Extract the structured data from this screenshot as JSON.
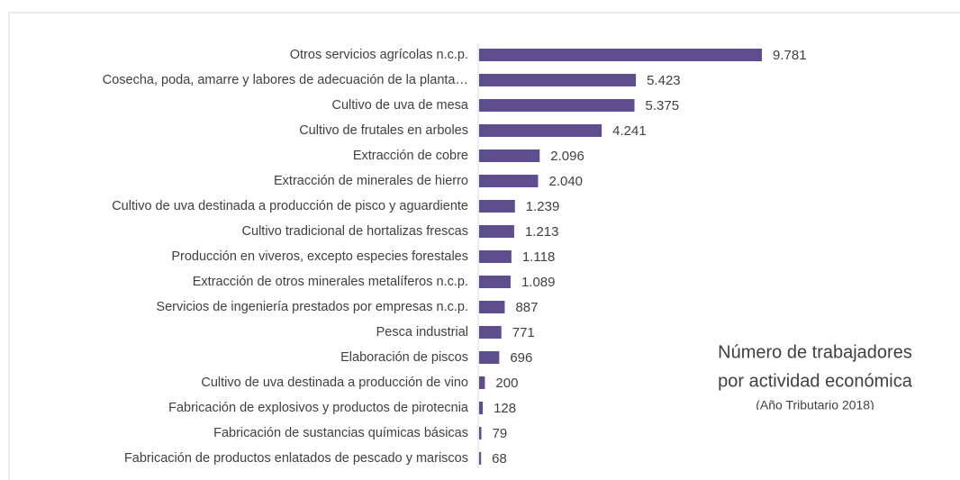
{
  "chart_data": {
    "type": "bar",
    "orientation": "horizontal",
    "title": "Número de trabajadores",
    "title_line2": "por actividad económica",
    "subtitle": "(Año Tributario 2018)",
    "color": "#5f4e8e",
    "categories": [
      "Otros servicios agrícolas n.c.p.",
      "Cosecha, poda, amarre y labores de adecuación de la planta…",
      "Cultivo de uva de mesa",
      "Cultivo de frutales en arboles",
      "Extracción de cobre",
      "Extracción de minerales de hierro",
      "Cultivo de uva destinada a producción de pisco y aguardiente",
      "Cultivo tradicional de hortalizas frescas",
      "Producción en viveros, excepto especies forestales",
      "Extracción de otros minerales metalíferos n.c.p.",
      "Servicios de ingeniería prestados por empresas n.c.p.",
      "Pesca industrial",
      "Elaboración de piscos",
      "Cultivo de uva destinada a producción de vino",
      "Fabricación de explosivos y productos de pirotecnia",
      "Fabricación de sustancias químicas básicas",
      "Fabricación de productos enlatados de pescado y mariscos"
    ],
    "values": [
      9781,
      5423,
      5375,
      4241,
      2096,
      2040,
      1239,
      1213,
      1118,
      1089,
      887,
      771,
      696,
      200,
      128,
      79,
      68
    ],
    "value_labels": [
      "9.781",
      "5.423",
      "5.375",
      "4.241",
      "2.096",
      "2.040",
      "1.239",
      "1.213",
      "1.118",
      "1.089",
      "887",
      "771",
      "696",
      "200",
      "128",
      "79",
      "68"
    ]
  }
}
